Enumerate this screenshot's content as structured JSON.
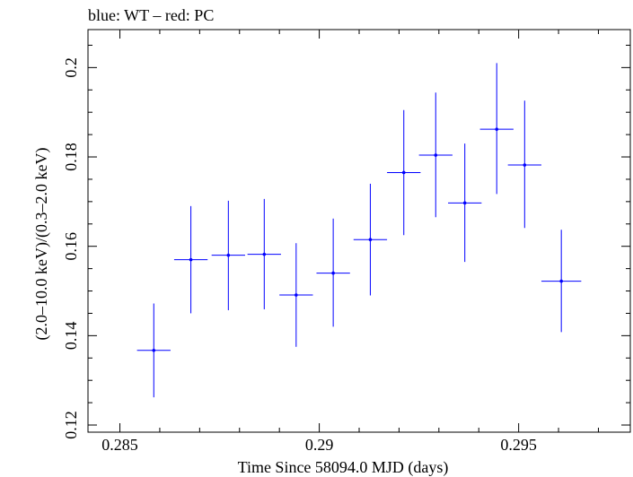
{
  "chart_data": {
    "type": "scatter",
    "title": "blue: WT – red: PC",
    "xlabel": "Time Since 58094.0 MJD (days)",
    "ylabel": "(2.0–10.0 keV)/(0.3–2.0 keV)",
    "xlim": [
      0.2842,
      0.2978
    ],
    "ylim": [
      0.1184,
      0.2085
    ],
    "x_ticks": [
      {
        "value": 0.285,
        "label": "0.285"
      },
      {
        "value": 0.29,
        "label": "0.29"
      },
      {
        "value": 0.295,
        "label": "0.295"
      }
    ],
    "y_ticks": [
      {
        "value": 0.12,
        "label": "0.12"
      },
      {
        "value": 0.14,
        "label": "0.14"
      },
      {
        "value": 0.16,
        "label": "0.16"
      },
      {
        "value": 0.18,
        "label": "0.18"
      },
      {
        "value": 0.2,
        "label": "0.2"
      }
    ],
    "x_minor_step": 0.001,
    "y_minor_step": 0.005,
    "grid": false,
    "series": [
      {
        "name": "WT",
        "color": "#0000ff",
        "points": [
          {
            "x": 0.28585,
            "xerr": 0.00042,
            "y": 0.1367,
            "ylo": 0.1262,
            "yhi": 0.1472
          },
          {
            "x": 0.28678,
            "xerr": 0.00042,
            "y": 0.157,
            "ylo": 0.145,
            "yhi": 0.169
          },
          {
            "x": 0.28772,
            "xerr": 0.00042,
            "y": 0.158,
            "ylo": 0.1457,
            "yhi": 0.1702
          },
          {
            "x": 0.28862,
            "xerr": 0.00042,
            "y": 0.1582,
            "ylo": 0.1459,
            "yhi": 0.1706
          },
          {
            "x": 0.28942,
            "xerr": 0.00042,
            "y": 0.1491,
            "ylo": 0.1375,
            "yhi": 0.1607
          },
          {
            "x": 0.29035,
            "xerr": 0.00042,
            "y": 0.154,
            "ylo": 0.142,
            "yhi": 0.1662
          },
          {
            "x": 0.29128,
            "xerr": 0.00042,
            "y": 0.1615,
            "ylo": 0.149,
            "yhi": 0.174
          },
          {
            "x": 0.29212,
            "xerr": 0.00042,
            "y": 0.1765,
            "ylo": 0.1625,
            "yhi": 0.1905
          },
          {
            "x": 0.29292,
            "xerr": 0.00042,
            "y": 0.1804,
            "ylo": 0.1665,
            "yhi": 0.1944
          },
          {
            "x": 0.29365,
            "xerr": 0.00042,
            "y": 0.1697,
            "ylo": 0.1565,
            "yhi": 0.183
          },
          {
            "x": 0.29445,
            "xerr": 0.00042,
            "y": 0.1862,
            "ylo": 0.1717,
            "yhi": 0.201
          },
          {
            "x": 0.29515,
            "xerr": 0.00042,
            "y": 0.1782,
            "ylo": 0.1641,
            "yhi": 0.1926
          },
          {
            "x": 0.29607,
            "xerr": 0.0005,
            "y": 0.1522,
            "ylo": 0.1408,
            "yhi": 0.1637
          }
        ]
      }
    ]
  }
}
